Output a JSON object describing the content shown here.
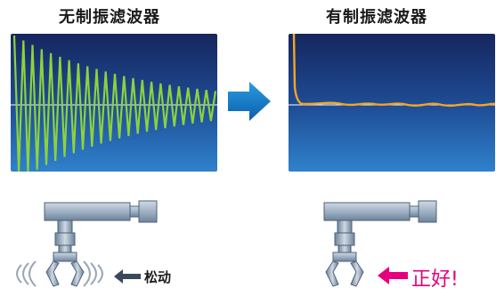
{
  "left": {
    "title": "无制振滤波器",
    "caption": "松动"
  },
  "right": {
    "title": "有制振滤波器",
    "caption": "正好!"
  },
  "colors": {
    "panel_top": "#1a2e6e",
    "panel_bottom": "#2f7fc8",
    "waveform_left": "#8dd23c",
    "waveform_right": "#f5a623",
    "baseline": "#ffffff",
    "arrow": "#1878c8",
    "caption_ok": "#e6007e"
  },
  "icons": [
    "arrow-right-icon",
    "robot-arm-icon",
    "vibration-lines-icon",
    "arrow-left-icon"
  ]
}
